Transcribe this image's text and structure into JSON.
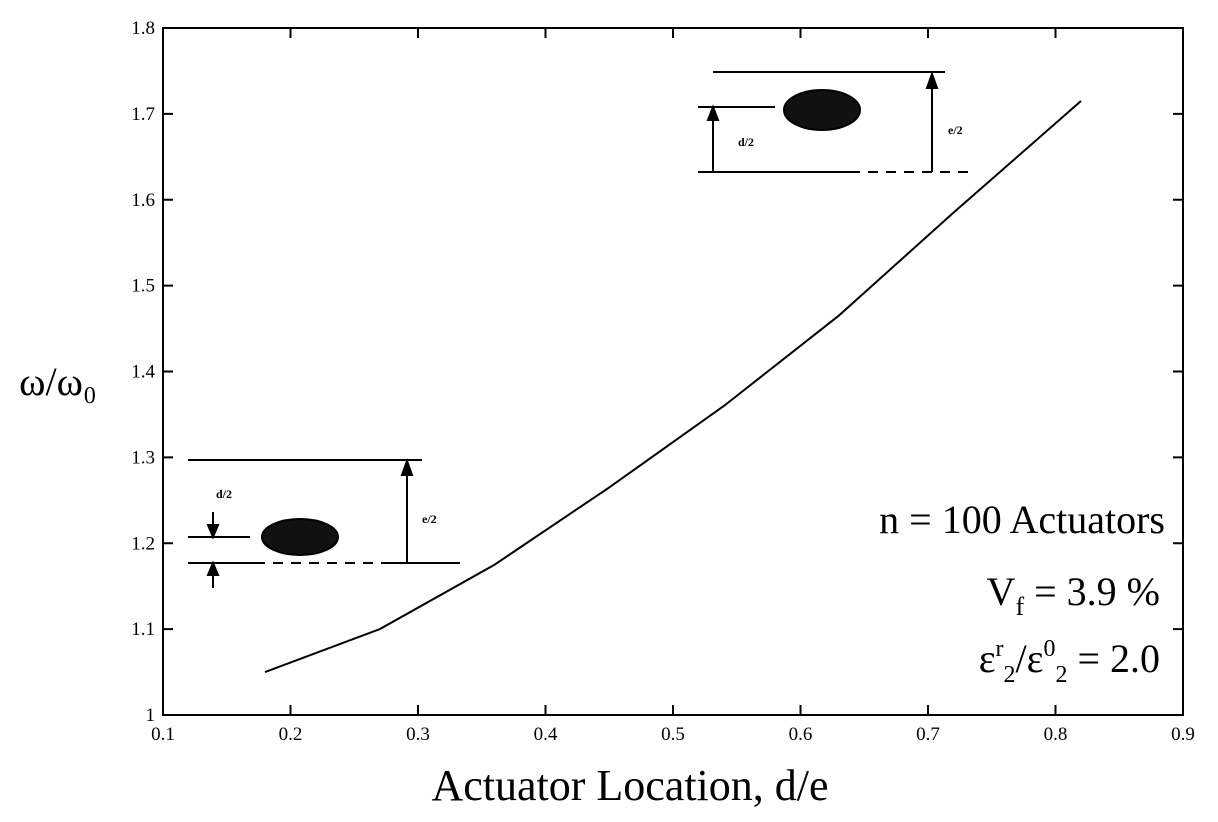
{
  "chart_data": {
    "type": "line",
    "x_label": "Actuator Location, d/e",
    "y_label": "ω/ω₀",
    "x": [
      0.18,
      0.27,
      0.36,
      0.45,
      0.54,
      0.63,
      0.72,
      0.82
    ],
    "series": [
      {
        "color": "#000000",
        "values": [
          1.05,
          1.1,
          1.175,
          1.265,
          1.36,
          1.465,
          1.585,
          1.715
        ]
      }
    ],
    "xlim": [
      0.1,
      0.9
    ],
    "xticks": [
      0.1,
      0.2,
      0.3,
      0.4,
      0.5,
      0.6,
      0.7,
      0.8,
      0.9
    ],
    "ylim": [
      1,
      1.8
    ],
    "yticks": [
      1,
      1.1,
      1.2,
      1.3,
      1.4,
      1.5,
      1.6,
      1.7,
      1.8
    ],
    "annotations": [
      {
        "parts": [
          "n = 100 Actuators"
        ]
      },
      {
        "parts": [
          "V",
          "f",
          " = 3.9 %"
        ]
      },
      {
        "parts": [
          "ε",
          "r",
          "2",
          "/ε",
          "0",
          "2",
          " = 2.0"
        ]
      }
    ],
    "insets": [
      {
        "labels": [
          "d/2",
          "e/2"
        ]
      },
      {
        "labels": [
          "d/2",
          "e/2"
        ]
      }
    ]
  }
}
